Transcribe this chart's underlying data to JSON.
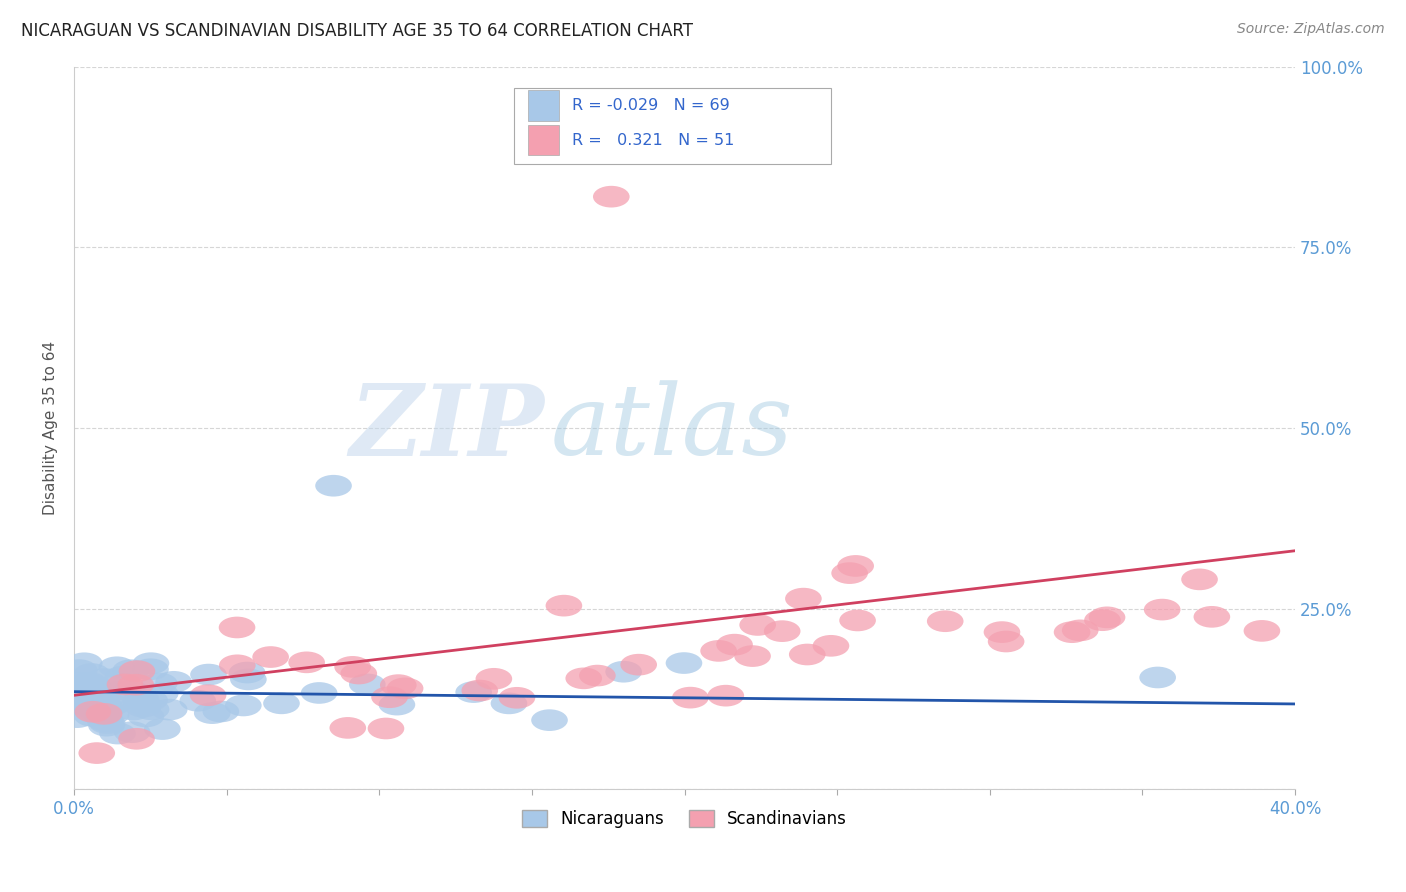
{
  "title": "NICARAGUAN VS SCANDINAVIAN DISABILITY AGE 35 TO 64 CORRELATION CHART",
  "source": "Source: ZipAtlas.com",
  "ylabel": "Disability Age 35 to 64",
  "xlim": [
    0.0,
    0.4
  ],
  "ylim": [
    0.0,
    1.0
  ],
  "x_tick_positions": [
    0.0,
    0.05,
    0.1,
    0.15,
    0.2,
    0.25,
    0.3,
    0.35,
    0.4
  ],
  "x_tick_labels": [
    "0.0%",
    "",
    "",
    "",
    "",
    "",
    "",
    "",
    "40.0%"
  ],
  "y_tick_positions": [
    0.0,
    0.25,
    0.5,
    0.75,
    1.0
  ],
  "y_tick_labels_right": [
    "",
    "25.0%",
    "50.0%",
    "75.0%",
    "100.0%"
  ],
  "nicaraguan_color": "#a8c8e8",
  "scandinavian_color": "#f4a0b0",
  "nicaraguan_line_color": "#2255aa",
  "scandinavian_line_color": "#d04060",
  "legend_r_nicaraguan": "-0.029",
  "legend_r_scandinavian": "0.321",
  "legend_n_nicaraguan": "69",
  "legend_n_scandinavian": "51",
  "watermark_zip": "ZIP",
  "watermark_atlas": "atlas",
  "background_color": "#ffffff",
  "grid_color": "#cccccc",
  "tick_color": "#5b9bd5",
  "title_color": "#222222",
  "source_color": "#888888",
  "ylabel_color": "#555555"
}
